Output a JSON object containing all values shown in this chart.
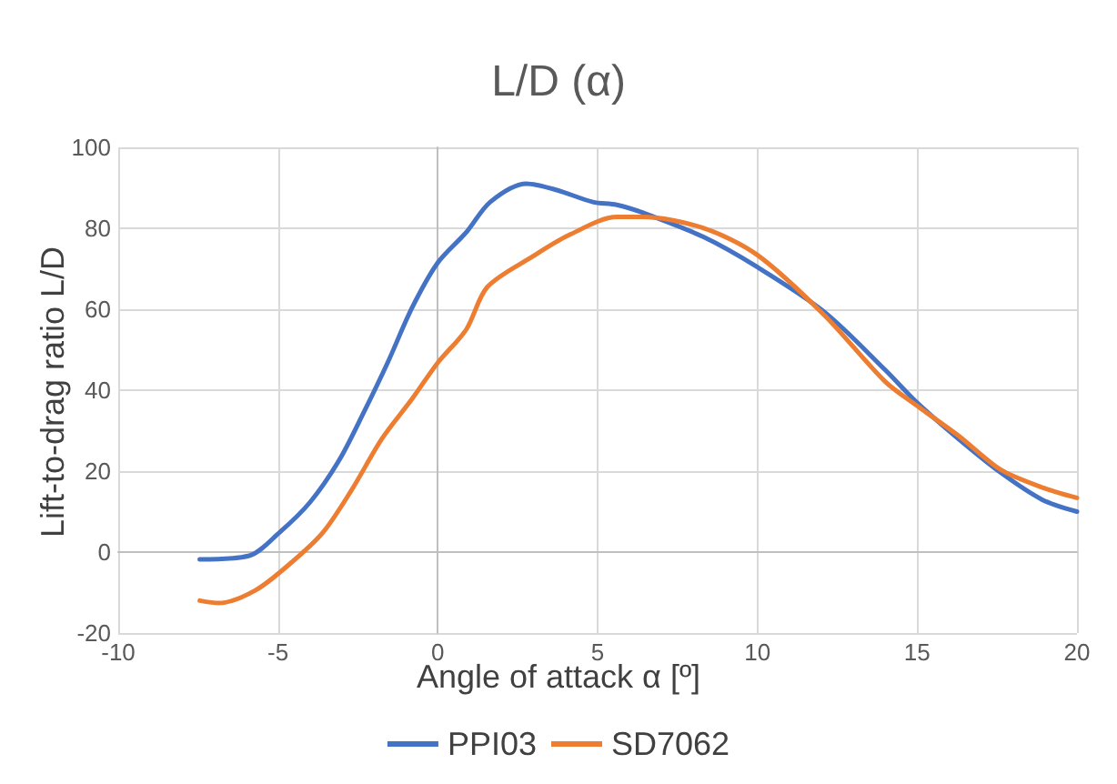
{
  "chart_data": {
    "type": "line",
    "title": "L/D (α)",
    "xlabel": "Angle of attack α [º]",
    "ylabel": "Lift-to-drag ratio L/D",
    "xlim": [
      -10,
      20
    ],
    "xticks": [
      -10,
      -5,
      0,
      5,
      10,
      15,
      20
    ],
    "ylim": [
      -20,
      100
    ],
    "yticks": [
      -20,
      0,
      20,
      40,
      60,
      80,
      100
    ],
    "grid": true,
    "legend": "bottom",
    "marker": "none",
    "line_style": "solid",
    "series": [
      {
        "name": "PPI03",
        "color": "#4472c4",
        "x": [
          -7.45,
          -5.9,
          -4.96,
          -4.0,
          -3.08,
          -2.3,
          -1.57,
          -0.81,
          0,
          0.89,
          1.64,
          2.77,
          3.7,
          4.85,
          5.6,
          6.4,
          8.3,
          10,
          12.1,
          14,
          15,
          16.3,
          17.6,
          18.9,
          20
        ],
        "values": [
          -1.8,
          -0.9,
          4.8,
          12.3,
          22.8,
          34.8,
          46.8,
          60.3,
          71.5,
          79,
          86.5,
          91,
          89.5,
          86.5,
          85.8,
          83.9,
          77.9,
          70.4,
          59.3,
          45,
          36.9,
          27.9,
          19.7,
          13,
          10
        ]
      },
      {
        "name": "SD7062",
        "color": "#ed7d31",
        "x": [
          -7.45,
          -6.85,
          -5.7,
          -4.6,
          -3.6,
          -2.7,
          -1.75,
          -0.81,
          0,
          0.89,
          1.55,
          2.96,
          4.1,
          5.6,
          6.4,
          8.3,
          10,
          12.1,
          14,
          15,
          16.3,
          17.6,
          18.9,
          20
        ],
        "values": [
          -12,
          -12.6,
          -9.4,
          -2.7,
          4.8,
          15.3,
          28,
          37.8,
          46.8,
          55,
          65.5,
          73,
          78.3,
          82.8,
          82.8,
          80.1,
          73.4,
          58.5,
          42.1,
          36.1,
          28.7,
          20.4,
          16,
          13.4
        ]
      }
    ]
  }
}
